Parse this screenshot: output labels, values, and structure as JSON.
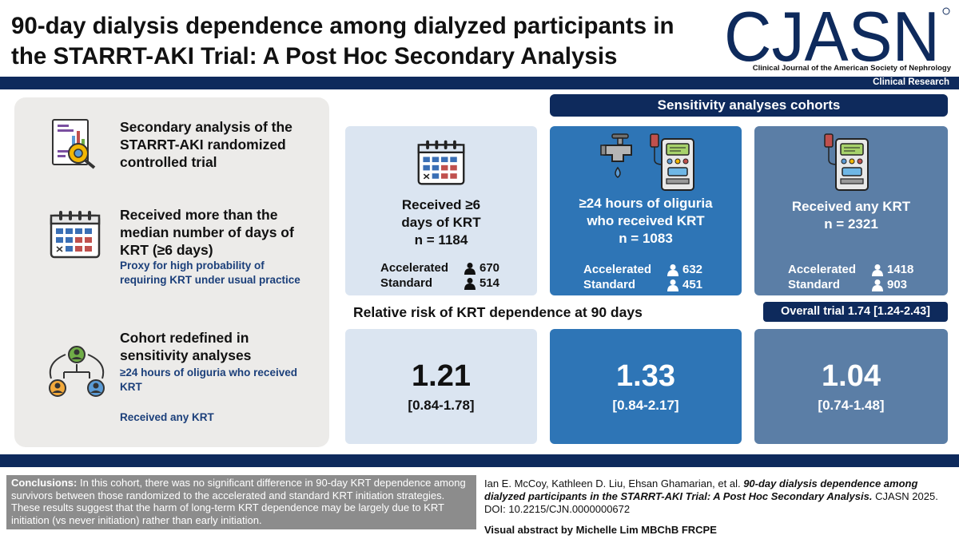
{
  "header": {
    "title": "90-day dialysis dependence among dialyzed participants in the STARRT-AKI Trial: A Post Hoc Secondary Analysis",
    "logo_text": "CJASN",
    "logo_subtitle": "Clinical Journal of the American Society of Nephrology",
    "category": "Clinical Research",
    "brand_color": "#0e2a5c"
  },
  "left_panel": {
    "item1_title": "Secondary analysis of the STARRT-AKI randomized controlled trial",
    "item2_title": "Received more than the median number of days of KRT (≥6 days)",
    "item2_note": "Proxy for high probability of requiring KRT under usual practice",
    "item3_title": "Cohort redefined in sensitivity analyses",
    "item3_option1": "≥24 hours of oliguria who received KRT",
    "item3_option2": "Received any KRT"
  },
  "sensitivity_header": "Sensitivity analyses cohorts",
  "cohorts": [
    {
      "title_line1": "Received ≥6",
      "title_line2": "days of KRT",
      "n": "n = 1184",
      "accelerated_label": "Accelerated",
      "accelerated_value": "670",
      "standard_label": "Standard",
      "standard_value": "514"
    },
    {
      "title_line1": "≥24 hours of oliguria",
      "title_line2": "who received KRT",
      "n": "n = 1083",
      "accelerated_label": "Accelerated",
      "accelerated_value": "632",
      "standard_label": "Standard",
      "standard_value": "451"
    },
    {
      "title_line1": "Received any KRT",
      "n": "n = 2321",
      "accelerated_label": "Accelerated",
      "accelerated_value": "1418",
      "standard_label": "Standard",
      "standard_value": "903"
    }
  ],
  "relative_risk": {
    "title": "Relative risk of KRT dependence at 90 days",
    "overall": "Overall trial 1.74 [1.24-2.43]",
    "values": [
      {
        "value": "1.21",
        "ci": "[0.84-1.78]"
      },
      {
        "value": "1.33",
        "ci": "[0.84-2.17]"
      },
      {
        "value": "1.04",
        "ci": "[0.74-1.48]"
      }
    ]
  },
  "footer": {
    "conclusions_label": "Conclusions:",
    "conclusions_text": " In this cohort, there was no significant difference in 90-day KRT dependence among survivors between those randomized to the accelerated and standard KRT initiation strategies. These results suggest that the harm of long-term KRT dependence may be largely due to KRT initiation (vs never initiation) rather than early initiation.",
    "citation_authors": "Ian E. McCoy, Kathleen D. Liu, Ehsan Ghamarian, et al. ",
    "citation_title": "90-day dialysis dependence among dialyzed participants in the STARRT-AKI Trial: A Post Hoc Secondary Analysis.",
    "citation_source": " CJASN 2025. DOI: 10.2215/CJN.0000000672",
    "credit": "Visual abstract by Michelle Lim MBChB FRCPE"
  }
}
